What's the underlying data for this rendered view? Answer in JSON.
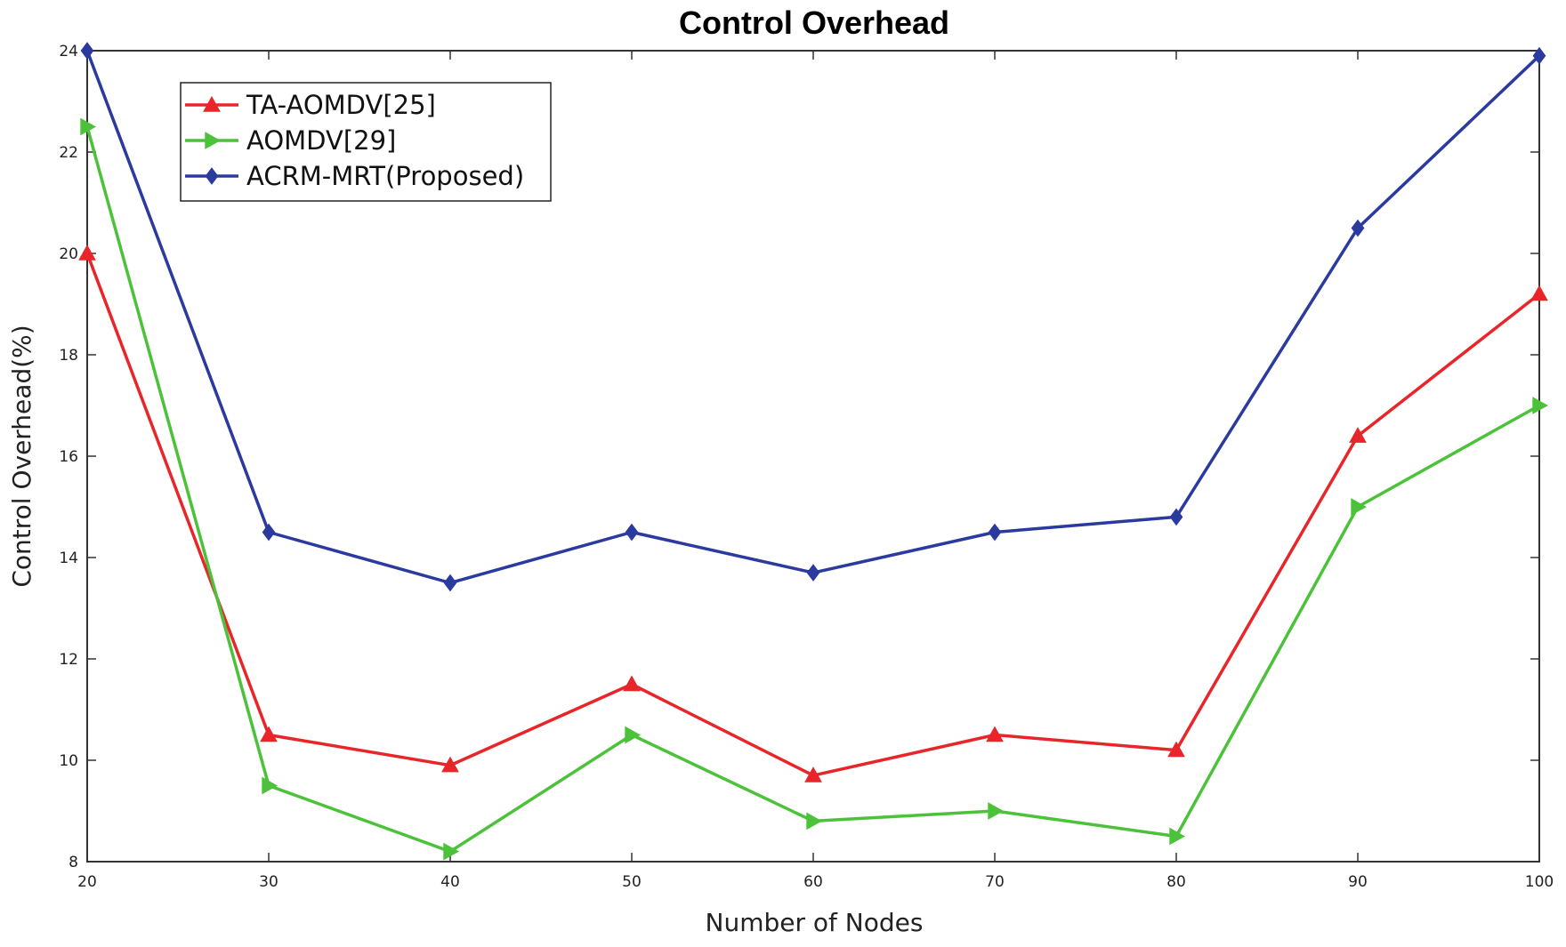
{
  "chart_data": {
    "type": "line",
    "title": "Control Overhead",
    "xlabel": "Number of Nodes",
    "ylabel": "Control Overhead(%)",
    "x": [
      20,
      30,
      40,
      50,
      60,
      70,
      80,
      90,
      100
    ],
    "xlim": [
      20,
      100
    ],
    "ylim": [
      8,
      24
    ],
    "xticks": [
      20,
      30,
      40,
      50,
      60,
      70,
      80,
      90,
      100
    ],
    "yticks": [
      8,
      10,
      12,
      14,
      16,
      18,
      20,
      22,
      24
    ],
    "grid": false,
    "legend_position": "top-left",
    "series": [
      {
        "name": "TA-AOMDV[25]",
        "color": "#e8262a",
        "marker": "triangle-up",
        "values": [
          20.0,
          10.5,
          9.9,
          11.5,
          9.7,
          10.5,
          10.2,
          16.4,
          19.2
        ]
      },
      {
        "name": "AOMDV[29]",
        "color": "#4cc23a",
        "marker": "triangle-right",
        "values": [
          22.5,
          9.5,
          8.2,
          10.5,
          8.8,
          9.0,
          8.5,
          15.0,
          17.0
        ]
      },
      {
        "name": "ACRM-MRT(Proposed)",
        "color": "#2b3a9e",
        "marker": "diamond",
        "values": [
          24.0,
          14.5,
          13.5,
          14.5,
          13.7,
          14.5,
          14.8,
          20.5,
          23.9
        ]
      }
    ]
  }
}
